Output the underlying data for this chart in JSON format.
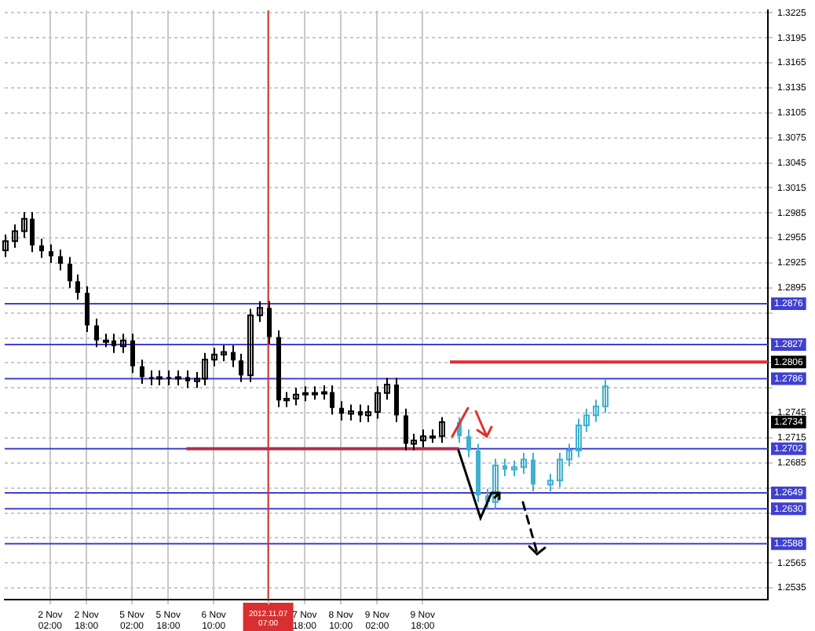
{
  "chart_data": {
    "type": "candlestick",
    "categories": [
      null,
      null,
      null,
      null,
      null,
      "2 Nov 02:00",
      null,
      null,
      null,
      "2 Nov 18:00",
      null,
      null,
      null,
      null,
      "5 Nov 02:00",
      null,
      null,
      null,
      "5 Nov 18:00",
      null,
      null,
      null,
      null,
      "6 Nov 10:00",
      null,
      null,
      null,
      null,
      null,
      "2012.11.07 07:00",
      null,
      null,
      null,
      "7 Nov 18:00",
      null,
      null,
      null,
      "8 Nov 10:00",
      null,
      null,
      null,
      "9 Nov 02:00",
      null,
      null,
      null,
      null,
      "9 Nov 18:00",
      null,
      null,
      null,
      null,
      null,
      null,
      null,
      null,
      null,
      null,
      null,
      null,
      null,
      null,
      null,
      null,
      null,
      null,
      null,
      null,
      null,
      null,
      null,
      null,
      null,
      null,
      null,
      null,
      null,
      null,
      null,
      null,
      null,
      null,
      null,
      null,
      null,
      null
    ],
    "ylim": [
      1.2521,
      1.3228
    ],
    "yticks": [
      1.2535,
      1.2565,
      {
        "value": 1.2595,
        "label": null
      },
      {
        "value": 1.2625,
        "label": null
      },
      {
        "value": 1.2655,
        "label": null
      },
      1.2685,
      1.2715,
      1.2745,
      {
        "value": 1.2775,
        "label": null
      },
      {
        "value": 1.2805,
        "label": null
      },
      {
        "value": 1.2835,
        "label": null
      },
      {
        "value": 1.2865,
        "label": null
      },
      1.2895,
      1.2925,
      1.2955,
      1.2985,
      1.3015,
      1.3045,
      1.3075,
      1.3105,
      1.3135,
      1.3165,
      1.3195,
      1.3225
    ],
    "grid": true,
    "series": [
      {
        "color": "#000000",
        "ohlc": [
          [
            1.294,
            1.2959,
            1.2932,
            1.2951
          ],
          [
            1.2951,
            1.2971,
            1.2943,
            1.2963
          ],
          [
            1.2963,
            1.2986,
            1.2955,
            1.2978
          ],
          [
            1.2978,
            1.2986,
            1.2938,
            1.2946
          ],
          [
            1.2946,
            1.2954,
            1.2931,
            1.2939
          ],
          [
            1.2939,
            1.2947,
            1.2925,
            1.2933
          ],
          [
            1.2933,
            1.2941,
            1.2916,
            1.2924
          ],
          [
            1.2924,
            1.2932,
            1.2895,
            1.2903
          ],
          [
            1.2903,
            1.2911,
            1.2881,
            1.2889
          ],
          [
            1.2889,
            1.2897,
            1.2842,
            1.285
          ],
          [
            1.285,
            1.2858,
            1.2824,
            1.2832
          ],
          [
            1.2832,
            1.284,
            1.2824,
            1.2832
          ],
          [
            1.2832,
            1.284,
            1.2817,
            1.2825
          ],
          [
            1.2825,
            1.284,
            1.2817,
            1.2832
          ],
          [
            1.2832,
            1.284,
            1.2793,
            1.2801
          ],
          [
            1.2801,
            1.2809,
            1.278,
            1.2788
          ],
          [
            1.2788,
            1.2796,
            1.2778,
            1.2786
          ],
          [
            1.2786,
            1.2796,
            1.2778,
            1.2788
          ],
          [
            1.2788,
            1.2796,
            1.2778,
            1.2786
          ],
          [
            1.2786,
            1.2796,
            1.2778,
            1.2788
          ],
          [
            1.2788,
            1.2796,
            1.2775,
            1.2783
          ],
          [
            1.2783,
            1.2794,
            1.2775,
            1.2786
          ],
          [
            1.2786,
            1.2817,
            1.2778,
            1.2809
          ],
          [
            1.2809,
            1.2823,
            1.2801,
            1.2815
          ],
          [
            1.2815,
            1.2826,
            1.2807,
            1.2818
          ],
          [
            1.2818,
            1.2826,
            1.28,
            1.2808
          ],
          [
            1.2808,
            1.2816,
            1.2782,
            1.279
          ],
          [
            1.279,
            1.287,
            1.2782,
            1.2862
          ],
          [
            1.2862,
            1.2879,
            1.2854,
            1.2871
          ],
          [
            1.2871,
            1.2879,
            1.2828,
            1.2836
          ],
          [
            1.2836,
            1.2844,
            1.2752,
            1.276
          ],
          [
            1.276,
            1.277,
            1.2752,
            1.2762
          ],
          [
            1.2762,
            1.2775,
            1.2754,
            1.2767
          ],
          [
            1.2767,
            1.2777,
            1.2759,
            1.2769
          ],
          [
            1.2769,
            1.2777,
            1.2761,
            1.2769
          ],
          [
            1.2769,
            1.2778,
            1.2761,
            1.277
          ],
          [
            1.277,
            1.2778,
            1.2743,
            1.2751
          ],
          [
            1.2751,
            1.2759,
            1.2736,
            1.2744
          ],
          [
            1.2744,
            1.2755,
            1.2736,
            1.2747
          ],
          [
            1.2747,
            1.2755,
            1.2734,
            1.2742
          ],
          [
            1.2742,
            1.2754,
            1.2734,
            1.2746
          ],
          [
            1.2746,
            1.2777,
            1.2738,
            1.2769
          ],
          [
            1.2769,
            1.2787,
            1.2761,
            1.2779
          ],
          [
            1.2779,
            1.2787,
            1.2734,
            1.2742
          ],
          [
            1.2742,
            1.275,
            1.27,
            1.2708
          ],
          [
            1.2708,
            1.272,
            1.27,
            1.2712
          ],
          [
            1.2712,
            1.2725,
            1.2704,
            1.2717
          ],
          [
            1.2717,
            1.2725,
            1.2709,
            1.2717
          ],
          [
            1.2717,
            1.274,
            1.2709,
            1.2734
          ],
          null,
          null,
          null,
          null,
          null,
          null,
          null,
          null,
          null,
          null,
          null,
          null,
          null,
          null,
          null,
          null,
          null,
          null,
          null,
          null,
          null,
          null,
          null,
          null,
          null,
          null,
          null,
          null,
          null,
          null,
          null,
          null,
          null,
          null,
          null,
          null
        ]
      },
      {
        "color": "#40b0d0",
        "ohlc": [
          null,
          null,
          null,
          null,
          null,
          null,
          null,
          null,
          null,
          null,
          null,
          null,
          null,
          null,
          null,
          null,
          null,
          null,
          null,
          null,
          null,
          null,
          null,
          null,
          null,
          null,
          null,
          null,
          null,
          null,
          null,
          null,
          null,
          null,
          null,
          null,
          null,
          null,
          null,
          null,
          null,
          null,
          null,
          null,
          null,
          null,
          null,
          null,
          null,
          null,
          [
            1.2734,
            1.274,
            1.2709,
            1.2717
          ],
          [
            1.2717,
            1.2725,
            1.2692,
            1.27
          ],
          [
            1.27,
            1.2708,
            1.2638,
            1.2646
          ],
          [
            1.2646,
            1.2654,
            1.263,
            1.2638
          ],
          [
            1.2638,
            1.269,
            1.263,
            1.2682
          ],
          [
            1.2682,
            1.269,
            1.2669,
            1.2677
          ],
          [
            1.2677,
            1.2688,
            1.2669,
            1.268
          ],
          [
            1.268,
            1.2697,
            1.2672,
            1.2689
          ],
          [
            1.2689,
            1.2697,
            1.2651,
            1.2659
          ],
          null,
          [
            1.2659,
            1.2672,
            1.2651,
            1.2664
          ],
          [
            1.2664,
            1.2697,
            1.2656,
            1.2689
          ],
          [
            1.2689,
            1.2708,
            1.2681,
            1.27
          ],
          [
            1.27,
            1.2738,
            1.2692,
            1.273
          ],
          [
            1.273,
            1.275,
            1.2722,
            1.2742
          ],
          [
            1.2742,
            1.2761,
            1.2734,
            1.2753
          ],
          [
            1.2753,
            1.2785,
            1.2745,
            1.2777
          ],
          null,
          null,
          null,
          null,
          null,
          null,
          null,
          null,
          null,
          null,
          null,
          null,
          null,
          null,
          null,
          null,
          null,
          null
        ]
      },
      {
        "type": "line",
        "color": "#e03030",
        "values": [
          null,
          null,
          null,
          null,
          null,
          null,
          null,
          null,
          null,
          null,
          null,
          null,
          null,
          null,
          null,
          null,
          null,
          null,
          null,
          null,
          null,
          null,
          null,
          null,
          null,
          null,
          null,
          null,
          null,
          null,
          null,
          null,
          null,
          null,
          null,
          null,
          null,
          null,
          null,
          null,
          null,
          null,
          null,
          null,
          null,
          null,
          null,
          null,
          null,
          1.2806,
          1.2806,
          1.2806,
          1.2806,
          1.2806,
          1.2806,
          1.2806,
          1.2806,
          1.2806,
          1.2806,
          1.2806,
          1.2806,
          1.2806,
          1.2806,
          1.2806,
          1.2806,
          1.2806,
          1.2806,
          1.2806,
          1.2806,
          1.2806,
          1.2806,
          1.2806,
          1.2806,
          1.2806,
          1.2806,
          1.2806,
          1.2806,
          1.2806,
          1.2806,
          1.2806,
          1.2806,
          1.2806,
          1.2806,
          1.2806,
          1.2806
        ]
      },
      {
        "type": "line",
        "color": "#b03050",
        "values": [
          null,
          null,
          null,
          null,
          null,
          null,
          null,
          null,
          null,
          null,
          null,
          null,
          null,
          null,
          null,
          null,
          null,
          null,
          null,
          null,
          1.2702,
          1.2702,
          1.2702,
          1.2702,
          1.2702,
          1.2702,
          1.2702,
          1.2702,
          1.2702,
          1.2702,
          1.2702,
          1.2702,
          1.2702,
          1.2702,
          1.2702,
          1.2702,
          1.2702,
          1.2702,
          1.2702,
          1.2702,
          1.2702,
          1.2702,
          1.2702,
          1.2702,
          1.2702,
          1.2702,
          1.2702,
          1.2702,
          1.2702,
          1.2702,
          1.2702,
          null,
          null,
          null,
          null,
          null,
          null,
          null,
          null,
          null,
          null,
          null,
          null,
          null,
          null,
          null,
          null,
          null,
          null,
          null,
          null,
          null,
          null,
          null,
          null,
          null,
          null,
          null,
          null,
          null,
          null,
          null,
          null,
          null,
          null
        ]
      }
    ],
    "ref_lines": [
      {
        "axis": "y",
        "value": 1.2876,
        "label": "1.2876",
        "color": "#4040d0"
      },
      {
        "axis": "y",
        "value": 1.2827,
        "label": "1.2827",
        "color": "#4040d0"
      },
      {
        "axis": "y",
        "value": 1.2786,
        "label": "1.2786",
        "color": "#4040d0"
      },
      {
        "axis": "y",
        "value": 1.2702,
        "label": "1.2702",
        "color": "#4040d0"
      },
      {
        "axis": "y",
        "value": 1.2649,
        "label": "1.2649",
        "color": "#4040d0"
      },
      {
        "axis": "y",
        "value": 1.263,
        "label": "1.2630",
        "color": "#4040d0"
      },
      {
        "axis": "y",
        "value": 1.2588,
        "label": "1.2588",
        "color": "#4040d0"
      },
      {
        "axis": "x",
        "value": "2012.11.07 07:00",
        "color": "#d83030"
      }
    ],
    "annotations": [
      {
        "text": "1.2806",
        "y": 1.2806
      },
      "1.2734"
    ]
  }
}
